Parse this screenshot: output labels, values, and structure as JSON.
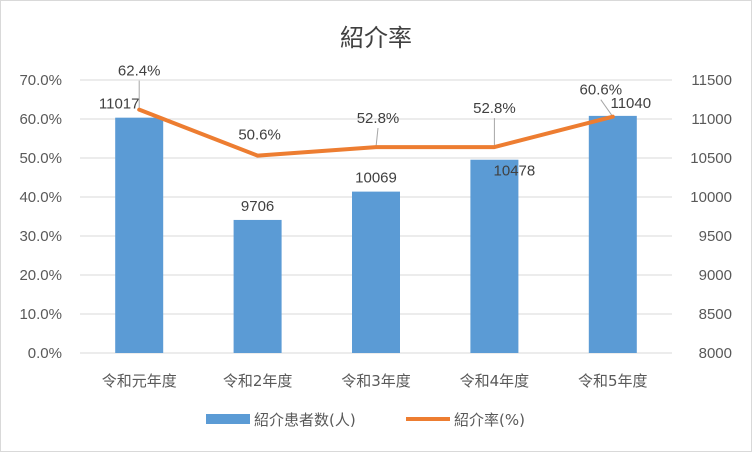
{
  "chart_data": {
    "type": "bar+line",
    "title": "紹介率",
    "categories": [
      "令和元年度",
      "令和2年度",
      "令和3年度",
      "令和4年度",
      "令和5年度"
    ],
    "series": [
      {
        "name": "紹介患者数(人)",
        "type": "bar",
        "axis": "right",
        "values": [
          11017,
          9706,
          10069,
          10478,
          11040
        ],
        "labels": [
          "11017",
          "9706",
          "10069",
          "10478",
          "11040"
        ],
        "color": "#5b9bd5"
      },
      {
        "name": "紹介率(%)",
        "type": "line",
        "axis": "left",
        "values": [
          62.4,
          50.6,
          52.8,
          52.8,
          60.6
        ],
        "labels": [
          "62.4%",
          "50.6%",
          "52.8%",
          "52.8%",
          "60.6%"
        ],
        "color": "#ed7d31"
      }
    ],
    "y_left": {
      "ylim": [
        0,
        70
      ],
      "ticks": [
        "0.0%",
        "10.0%",
        "20.0%",
        "30.0%",
        "40.0%",
        "50.0%",
        "60.0%",
        "70.0%"
      ]
    },
    "y_right": {
      "ylim": [
        8000,
        11500
      ],
      "ticks": [
        "8000",
        "8500",
        "9000",
        "9500",
        "10000",
        "10500",
        "11000",
        "11500"
      ]
    },
    "grid": true,
    "legend_position": "bottom"
  }
}
